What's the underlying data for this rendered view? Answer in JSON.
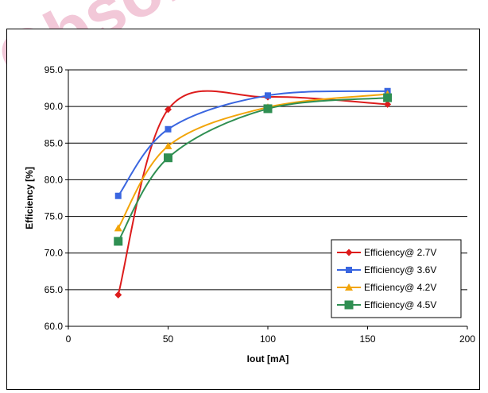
{
  "watermark": {
    "text": "Obsolete",
    "color": "#f2c8d8"
  },
  "chart_data": {
    "type": "line",
    "title": "",
    "xlabel": "Iout [mA]",
    "ylabel": "Efficiency [%]",
    "xlim": [
      0,
      200
    ],
    "ylim": [
      60,
      95
    ],
    "xticks": [
      0,
      50,
      100,
      150,
      200
    ],
    "yticks": [
      60.0,
      65.0,
      70.0,
      75.0,
      80.0,
      85.0,
      90.0,
      95.0
    ],
    "ytick_labels": [
      "60.0",
      "65.0",
      "70.0",
      "75.0",
      "80.0",
      "85.0",
      "90.0",
      "95.0"
    ],
    "xtick_labels": [
      "0",
      "50",
      "100",
      "150",
      "200"
    ],
    "grid": "horizontal",
    "smooth": true,
    "legend_position": "bottom-right",
    "series": [
      {
        "name": "Efficiency@ 2.7V",
        "color": "#dd1c1c",
        "marker": "diamond",
        "x": [
          25,
          50,
          100,
          160
        ],
        "y": [
          64.3,
          89.6,
          91.3,
          90.3
        ]
      },
      {
        "name": "Efficiency@ 3.6V",
        "color": "#3a66e0",
        "marker": "square",
        "x": [
          25,
          50,
          100,
          160
        ],
        "y": [
          77.8,
          86.9,
          91.5,
          92.1
        ]
      },
      {
        "name": "Efficiency@ 4.2V",
        "color": "#f2a50a",
        "marker": "triangle",
        "x": [
          25,
          50,
          100,
          160
        ],
        "y": [
          73.4,
          84.6,
          89.9,
          91.7
        ]
      },
      {
        "name": "Efficiency@ 4.5V",
        "color": "#2f8f52",
        "marker": "square-large",
        "x": [
          25,
          50,
          100,
          160
        ],
        "y": [
          71.6,
          83.0,
          89.7,
          91.2
        ]
      }
    ]
  }
}
